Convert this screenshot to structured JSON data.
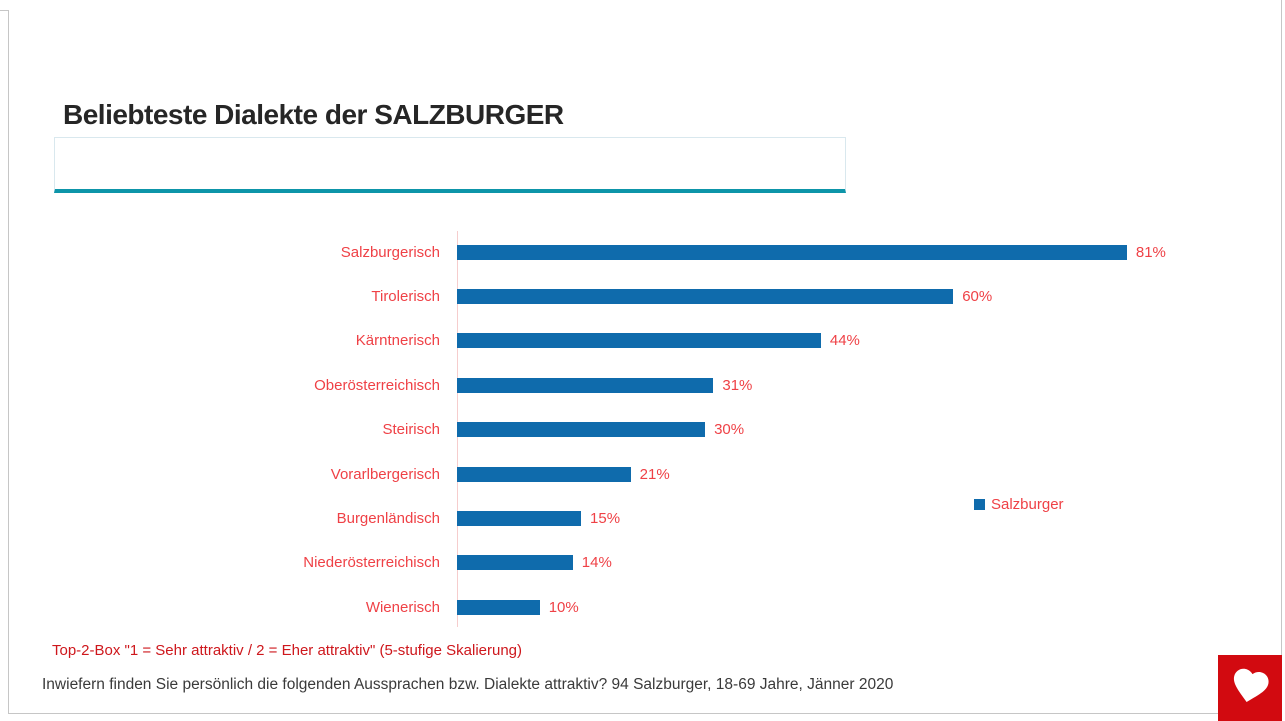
{
  "title": "Beliebteste Dialekte der SALZBURGER",
  "filter_box": {
    "value": "",
    "placeholder": ""
  },
  "chart_data": {
    "type": "bar",
    "orientation": "horizontal",
    "title": "Beliebteste Dialekte der SALZBURGER",
    "categories": [
      "Salzburgerisch",
      "Tirolerisch",
      "Kärntnerisch",
      "Oberösterreichisch",
      "Steirisch",
      "Vorarlbergerisch",
      "Burgenländisch",
      "Niederösterreichisch",
      "Wienerisch"
    ],
    "series": [
      {
        "name": "Salzburger",
        "values": [
          81,
          60,
          44,
          31,
          30,
          21,
          15,
          14,
          10
        ]
      }
    ],
    "value_labels": [
      "81%",
      "60%",
      "44%",
      "31%",
      "30%",
      "21%",
      "15%",
      "14%",
      "10%"
    ],
    "value_suffix": "%",
    "axis_range": [
      0,
      100
    ],
    "grid": false,
    "legend_position": "right",
    "bar_color": "#0f6bac",
    "category_label_color": "#ef4146",
    "value_label_color": "#ef4146"
  },
  "legend": {
    "label": "Salzburger",
    "swatch_color": "#0f6bac"
  },
  "footnote": "Top-2-Box \"1 = Sehr attraktiv / 2 = Eher attraktiv\" (5-stufige Skalierung)",
  "source_note": "Inwiefern finden Sie persönlich die folgenden Aussprachen bzw. Dialekte attraktiv? 94 Salzburger, 18-69 Jahre, Jänner 2020",
  "colors": {
    "accent_teal": "#0d95a9",
    "bar_blue": "#0f6bac",
    "label_red": "#ef4146",
    "footnote_red": "#ce171c",
    "heart_red": "#d20a10",
    "title_text": "#262626",
    "source_text": "#3a3a3a",
    "axis_line": "#f6cdcd"
  },
  "icons": {
    "heart": "heart-icon"
  }
}
